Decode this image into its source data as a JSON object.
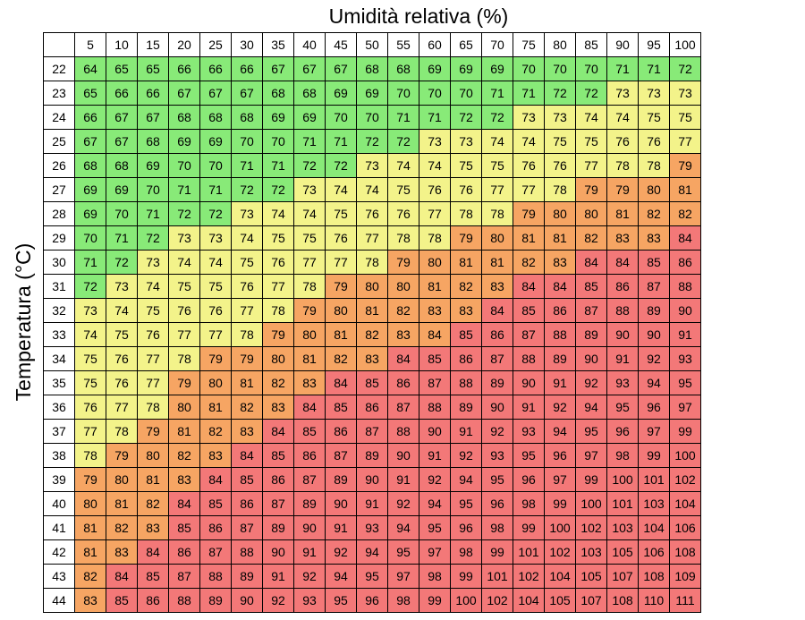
{
  "chart_data": {
    "type": "heatmap",
    "title": "",
    "xlabel": "Umidità relativa (%)",
    "ylabel": "Temperatura (°C)",
    "x": [
      5,
      10,
      15,
      20,
      25,
      30,
      35,
      40,
      45,
      50,
      55,
      60,
      65,
      70,
      75,
      80,
      85,
      90,
      95,
      100
    ],
    "y": [
      22,
      23,
      24,
      25,
      26,
      27,
      28,
      29,
      30,
      31,
      32,
      33,
      34,
      35,
      36,
      37,
      38,
      39,
      40,
      41,
      42,
      43,
      44
    ],
    "values": [
      [
        64,
        65,
        65,
        66,
        66,
        66,
        67,
        67,
        67,
        68,
        68,
        69,
        69,
        69,
        70,
        70,
        70,
        71,
        71,
        72
      ],
      [
        65,
        66,
        66,
        67,
        67,
        67,
        68,
        68,
        69,
        69,
        70,
        70,
        70,
        71,
        71,
        72,
        72,
        73,
        73,
        73
      ],
      [
        66,
        67,
        67,
        68,
        68,
        68,
        69,
        69,
        70,
        70,
        71,
        71,
        72,
        72,
        73,
        73,
        74,
        74,
        75,
        75
      ],
      [
        67,
        67,
        68,
        69,
        69,
        70,
        70,
        71,
        71,
        72,
        72,
        73,
        73,
        74,
        74,
        75,
        75,
        76,
        76,
        77
      ],
      [
        68,
        68,
        69,
        70,
        70,
        71,
        71,
        72,
        72,
        73,
        74,
        74,
        75,
        75,
        76,
        76,
        77,
        78,
        78,
        79
      ],
      [
        69,
        69,
        70,
        71,
        71,
        72,
        72,
        73,
        74,
        74,
        75,
        76,
        76,
        77,
        77,
        78,
        79,
        79,
        80,
        81
      ],
      [
        69,
        70,
        71,
        72,
        72,
        73,
        74,
        74,
        75,
        76,
        76,
        77,
        78,
        78,
        79,
        80,
        80,
        81,
        82,
        82
      ],
      [
        70,
        71,
        72,
        73,
        73,
        74,
        75,
        75,
        76,
        77,
        78,
        78,
        79,
        80,
        81,
        81,
        82,
        83,
        83,
        84
      ],
      [
        71,
        72,
        73,
        74,
        74,
        75,
        76,
        77,
        77,
        78,
        79,
        80,
        81,
        81,
        82,
        83,
        84,
        84,
        85,
        86
      ],
      [
        72,
        73,
        74,
        75,
        75,
        76,
        77,
        78,
        79,
        80,
        80,
        81,
        82,
        83,
        84,
        84,
        85,
        86,
        87,
        88
      ],
      [
        73,
        74,
        75,
        76,
        76,
        77,
        78,
        79,
        80,
        81,
        82,
        83,
        83,
        84,
        85,
        86,
        87,
        88,
        89,
        90
      ],
      [
        74,
        75,
        76,
        77,
        77,
        78,
        79,
        80,
        81,
        82,
        83,
        84,
        85,
        86,
        87,
        88,
        89,
        90,
        90,
        91
      ],
      [
        75,
        76,
        77,
        78,
        79,
        79,
        80,
        81,
        82,
        83,
        84,
        85,
        86,
        87,
        88,
        89,
        90,
        91,
        92,
        93
      ],
      [
        75,
        76,
        77,
        79,
        80,
        81,
        82,
        83,
        84,
        85,
        86,
        87,
        88,
        89,
        90,
        91,
        92,
        93,
        94,
        95
      ],
      [
        76,
        77,
        78,
        80,
        81,
        82,
        83,
        84,
        85,
        86,
        87,
        88,
        89,
        90,
        91,
        92,
        94,
        95,
        96,
        97
      ],
      [
        77,
        78,
        79,
        81,
        82,
        83,
        84,
        85,
        86,
        87,
        88,
        90,
        91,
        92,
        93,
        94,
        95,
        96,
        97,
        99
      ],
      [
        78,
        79,
        80,
        82,
        83,
        84,
        85,
        86,
        87,
        89,
        90,
        91,
        92,
        93,
        95,
        96,
        97,
        98,
        99,
        100
      ],
      [
        79,
        80,
        81,
        83,
        84,
        85,
        86,
        87,
        89,
        90,
        91,
        92,
        94,
        95,
        96,
        97,
        99,
        100,
        101,
        102
      ],
      [
        80,
        81,
        82,
        84,
        85,
        86,
        87,
        89,
        90,
        91,
        92,
        94,
        95,
        96,
        98,
        99,
        100,
        101,
        103,
        104
      ],
      [
        81,
        82,
        83,
        85,
        86,
        87,
        89,
        90,
        91,
        93,
        94,
        95,
        96,
        98,
        99,
        100,
        102,
        103,
        104,
        106
      ],
      [
        81,
        83,
        84,
        86,
        87,
        88,
        90,
        91,
        92,
        94,
        95,
        97,
        98,
        99,
        101,
        102,
        103,
        105,
        106,
        108
      ],
      [
        82,
        84,
        85,
        87,
        88,
        89,
        91,
        92,
        94,
        95,
        97,
        98,
        99,
        101,
        102,
        104,
        105,
        107,
        108,
        109
      ],
      [
        83,
        85,
        86,
        88,
        89,
        90,
        92,
        93,
        95,
        96,
        98,
        99,
        100,
        102,
        104,
        105,
        107,
        108,
        110,
        111
      ]
    ],
    "color_classes": [
      [
        1,
        1,
        1,
        1,
        1,
        1,
        1,
        1,
        1,
        1,
        1,
        1,
        1,
        1,
        1,
        1,
        1,
        1,
        1,
        1
      ],
      [
        1,
        1,
        1,
        1,
        1,
        1,
        1,
        1,
        1,
        1,
        1,
        1,
        1,
        1,
        1,
        1,
        1,
        2,
        2,
        2
      ],
      [
        1,
        1,
        1,
        1,
        1,
        1,
        1,
        1,
        1,
        1,
        1,
        1,
        1,
        1,
        2,
        2,
        2,
        2,
        2,
        2
      ],
      [
        1,
        1,
        1,
        1,
        1,
        1,
        1,
        1,
        1,
        1,
        1,
        2,
        2,
        2,
        2,
        2,
        2,
        2,
        2,
        2
      ],
      [
        1,
        1,
        1,
        1,
        1,
        1,
        1,
        1,
        1,
        2,
        2,
        2,
        2,
        2,
        2,
        2,
        2,
        2,
        2,
        3
      ],
      [
        1,
        1,
        1,
        1,
        1,
        1,
        1,
        2,
        2,
        2,
        2,
        2,
        2,
        2,
        2,
        2,
        3,
        3,
        3,
        3
      ],
      [
        1,
        1,
        1,
        1,
        1,
        2,
        2,
        2,
        2,
        2,
        2,
        2,
        2,
        2,
        3,
        3,
        3,
        3,
        3,
        3
      ],
      [
        1,
        1,
        1,
        2,
        2,
        2,
        2,
        2,
        2,
        2,
        2,
        2,
        3,
        3,
        3,
        3,
        3,
        3,
        3,
        4
      ],
      [
        1,
        1,
        2,
        2,
        2,
        2,
        2,
        2,
        2,
        2,
        3,
        3,
        3,
        3,
        3,
        3,
        4,
        4,
        4,
        4
      ],
      [
        1,
        2,
        2,
        2,
        2,
        2,
        2,
        2,
        3,
        3,
        3,
        3,
        3,
        3,
        4,
        4,
        4,
        4,
        4,
        4
      ],
      [
        2,
        2,
        2,
        2,
        2,
        2,
        2,
        3,
        3,
        3,
        3,
        3,
        3,
        4,
        4,
        4,
        4,
        4,
        4,
        4
      ],
      [
        2,
        2,
        2,
        2,
        2,
        2,
        3,
        3,
        3,
        3,
        3,
        3,
        4,
        4,
        4,
        4,
        4,
        4,
        4,
        4
      ],
      [
        2,
        2,
        2,
        2,
        3,
        3,
        3,
        3,
        3,
        3,
        4,
        4,
        4,
        4,
        4,
        4,
        4,
        4,
        4,
        4
      ],
      [
        2,
        2,
        2,
        3,
        3,
        3,
        3,
        3,
        4,
        4,
        4,
        4,
        4,
        4,
        4,
        4,
        4,
        4,
        4,
        4
      ],
      [
        2,
        2,
        2,
        3,
        3,
        3,
        3,
        4,
        4,
        4,
        4,
        4,
        4,
        4,
        4,
        4,
        4,
        4,
        4,
        4
      ],
      [
        2,
        2,
        3,
        3,
        3,
        3,
        4,
        4,
        4,
        4,
        4,
        4,
        4,
        4,
        4,
        4,
        4,
        4,
        4,
        4
      ],
      [
        2,
        3,
        3,
        3,
        3,
        4,
        4,
        4,
        4,
        4,
        4,
        4,
        4,
        4,
        4,
        4,
        4,
        4,
        4,
        4
      ],
      [
        3,
        3,
        3,
        3,
        4,
        4,
        4,
        4,
        4,
        4,
        4,
        4,
        4,
        4,
        4,
        4,
        4,
        4,
        4,
        4
      ],
      [
        3,
        3,
        3,
        4,
        4,
        4,
        4,
        4,
        4,
        4,
        4,
        4,
        4,
        4,
        4,
        4,
        4,
        4,
        4,
        4
      ],
      [
        3,
        3,
        3,
        4,
        4,
        4,
        4,
        4,
        4,
        4,
        4,
        4,
        4,
        4,
        4,
        4,
        4,
        4,
        4,
        4
      ],
      [
        3,
        3,
        4,
        4,
        4,
        4,
        4,
        4,
        4,
        4,
        4,
        4,
        4,
        4,
        4,
        4,
        4,
        4,
        4,
        4
      ],
      [
        3,
        4,
        4,
        4,
        4,
        4,
        4,
        4,
        4,
        4,
        4,
        4,
        4,
        4,
        4,
        4,
        4,
        4,
        4,
        4
      ],
      [
        3,
        4,
        4,
        4,
        4,
        4,
        4,
        4,
        4,
        4,
        4,
        4,
        4,
        4,
        4,
        4,
        4,
        4,
        4,
        4
      ]
    ],
    "colors": {
      "1": "#88ea78",
      "2": "#f3f38a",
      "3": "#f6a563",
      "4": "#f37878"
    },
    "grid": true,
    "legend": "none"
  }
}
